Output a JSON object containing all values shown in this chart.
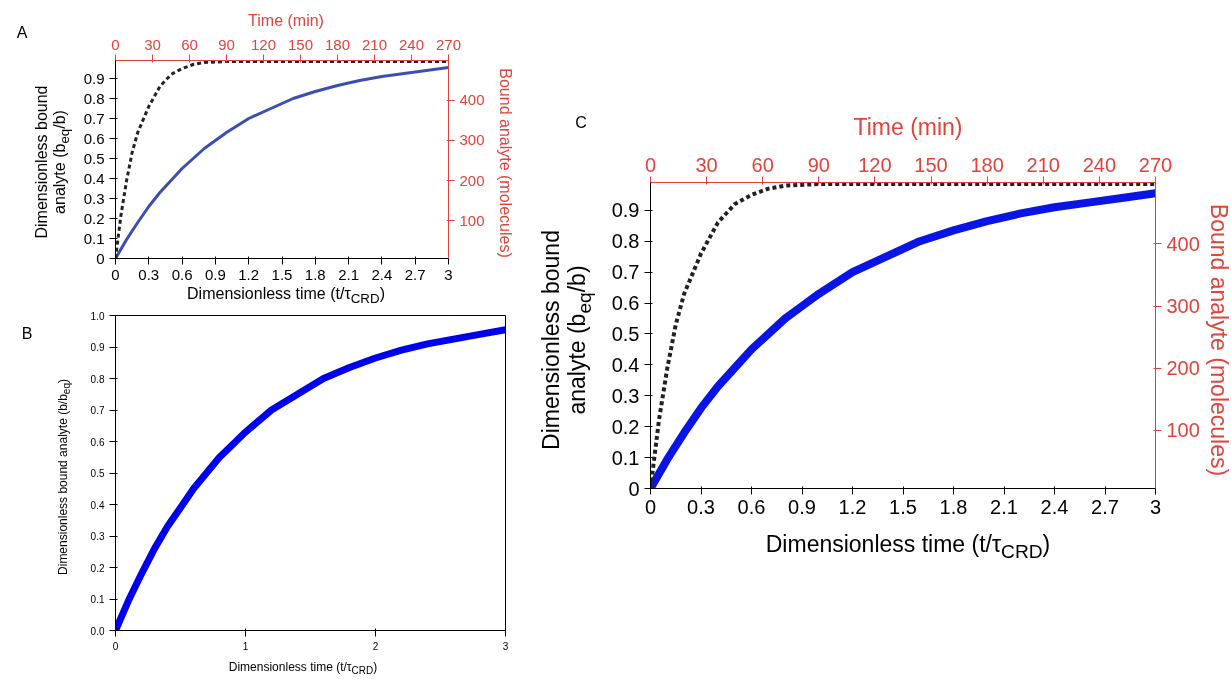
{
  "chart_data": [
    {
      "type": "line",
      "annotations": [
        "A"
      ],
      "xlabel": "Dimensionless time (t/τ$_{CRD}$)",
      "ylabel": "Dimensionless bound\nanalyte (b$_{eq}$/b)",
      "x2label": "Time (min)",
      "y2label": "Bound analyte (molecules)",
      "x": [
        0,
        0.1,
        0.2,
        0.3,
        0.4,
        0.5,
        0.6,
        0.7,
        0.8,
        0.9,
        1.0,
        1.2,
        1.4,
        1.6,
        1.8,
        2.0,
        2.2,
        2.4,
        2.6,
        2.8,
        3.0
      ],
      "series": [
        {
          "color": "#3a4fb0",
          "line_style": "solid",
          "values": [
            0,
            0.095,
            0.18,
            0.26,
            0.33,
            0.39,
            0.45,
            0.5,
            0.55,
            0.59,
            0.63,
            0.7,
            0.75,
            0.8,
            0.835,
            0.865,
            0.89,
            0.91,
            0.925,
            0.94,
            0.955
          ]
        },
        {
          "color": "#222222",
          "line_style": "dashed",
          "x": [
            0,
            0.05,
            0.1,
            0.15,
            0.2,
            0.3,
            0.4,
            0.5,
            0.6,
            0.7,
            0.8,
            1.0,
            1.5,
            2.0,
            2.5,
            3.0
          ],
          "values": [
            0,
            0.22,
            0.39,
            0.53,
            0.63,
            0.76,
            0.86,
            0.92,
            0.95,
            0.97,
            0.98,
            0.985,
            0.985,
            0.985,
            0.985,
            0.985
          ]
        }
      ],
      "xlim": [
        0,
        3
      ],
      "xticks": [
        0,
        0.3,
        0.6,
        0.9,
        1.2,
        1.5,
        1.8,
        2.1,
        2.4,
        2.7,
        3
      ],
      "ylim": [
        0,
        0.99
      ],
      "yticks": [
        0,
        0.1,
        0.2,
        0.3,
        0.4,
        0.5,
        0.6,
        0.7,
        0.8,
        0.9
      ],
      "x2lim": [
        0,
        270
      ],
      "x2ticks": [
        0,
        30,
        60,
        90,
        120,
        150,
        180,
        210,
        240,
        270
      ],
      "y2lim": [
        6,
        499
      ],
      "y2ticks": [
        100,
        200,
        300,
        400
      ],
      "grid": false,
      "marker": "none"
    },
    {
      "type": "line",
      "annotations": [
        "B"
      ],
      "xlabel": "Dimensionless time (t/τ$_{CRD}$)",
      "ylabel": "Dimensionless bound analyte (b/b$_{eq}$)",
      "x": [
        0,
        0.1,
        0.2,
        0.3,
        0.4,
        0.5,
        0.6,
        0.7,
        0.8,
        0.9,
        1.0,
        1.2,
        1.4,
        1.6,
        1.8,
        2.0,
        2.2,
        2.4,
        2.6,
        2.8,
        3.0
      ],
      "series": [
        {
          "color": "#0000ee",
          "line_style": "solid",
          "values": [
            0,
            0.095,
            0.18,
            0.26,
            0.33,
            0.39,
            0.45,
            0.5,
            0.55,
            0.59,
            0.63,
            0.7,
            0.75,
            0.8,
            0.835,
            0.865,
            0.89,
            0.91,
            0.925,
            0.94,
            0.955
          ]
        }
      ],
      "xlim": [
        0,
        3
      ],
      "xticks": [
        0,
        1,
        2,
        3
      ],
      "ylim": [
        0,
        1.0
      ],
      "yticks": [
        {
          "value": 0,
          "label": "0.0"
        },
        0.1,
        0.2,
        0.3,
        0.4,
        0.5,
        0.6,
        0.7,
        0.8,
        0.9,
        {
          "value": 1,
          "label": "1.0"
        }
      ],
      "grid": false,
      "marker": "none"
    },
    {
      "type": "line",
      "annotations": [
        "C"
      ],
      "xlabel": "Dimensionless time (t/τ$_{CRD}$)",
      "ylabel": "Dimensionless bound\nanalyte (b$_{eq}$/b)",
      "x2label": "Time (min)",
      "y2label": "Bound analyte (molecules)",
      "x": [
        0,
        0.1,
        0.2,
        0.3,
        0.4,
        0.5,
        0.6,
        0.7,
        0.8,
        0.9,
        1.0,
        1.2,
        1.4,
        1.6,
        1.8,
        2.0,
        2.2,
        2.4,
        2.6,
        2.8,
        3.0
      ],
      "series": [
        {
          "color": "#0a14e6",
          "line_style": "solid",
          "values": [
            0,
            0.095,
            0.18,
            0.26,
            0.33,
            0.39,
            0.45,
            0.5,
            0.55,
            0.59,
            0.63,
            0.7,
            0.75,
            0.8,
            0.835,
            0.865,
            0.89,
            0.91,
            0.925,
            0.94,
            0.955
          ]
        },
        {
          "color": "#222222",
          "line_style": "dashed",
          "x": [
            0,
            0.05,
            0.1,
            0.15,
            0.2,
            0.3,
            0.4,
            0.5,
            0.6,
            0.7,
            0.8,
            1.0,
            1.5,
            2.0,
            2.5,
            3.0
          ],
          "values": [
            0,
            0.22,
            0.39,
            0.53,
            0.63,
            0.76,
            0.86,
            0.92,
            0.95,
            0.97,
            0.98,
            0.985,
            0.985,
            0.985,
            0.985,
            0.985
          ]
        }
      ],
      "xlim": [
        0,
        3
      ],
      "xticks": [
        0,
        0.3,
        0.6,
        0.9,
        1.2,
        1.5,
        1.8,
        2.1,
        2.4,
        2.7,
        3
      ],
      "ylim": [
        0,
        0.99
      ],
      "yticks": [
        0,
        0.1,
        0.2,
        0.3,
        0.4,
        0.5,
        0.6,
        0.7,
        0.8,
        0.9
      ],
      "x2lim": [
        0,
        270
      ],
      "x2ticks": [
        0,
        30,
        60,
        90,
        120,
        150,
        180,
        210,
        240,
        270
      ],
      "y2lim": [
        6,
        499
      ],
      "y2ticks": [
        100,
        200,
        300,
        400
      ],
      "grid": false,
      "marker": "none"
    }
  ]
}
